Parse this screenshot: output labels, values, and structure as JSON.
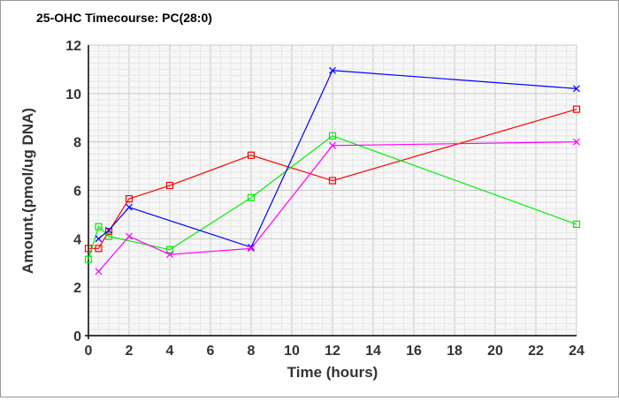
{
  "chart_data": {
    "type": "line",
    "title": "25-OHC Timecourse: PC(28:0)",
    "xlabel": "Time (hours)",
    "ylabel": "Amount.(pmol/ug DNA)",
    "xlim": [
      0,
      24
    ],
    "ylim": [
      0,
      12
    ],
    "xticks": [
      0,
      2,
      4,
      6,
      8,
      10,
      12,
      14,
      16,
      18,
      20,
      22,
      24
    ],
    "yticks": [
      0,
      2,
      4,
      6,
      8,
      10,
      12
    ],
    "grid": true,
    "series": [
      {
        "name": "red",
        "color": "#ff0000",
        "marker": "square",
        "x": [
          0,
          0.5,
          1,
          2,
          4,
          8,
          12,
          24
        ],
        "y": [
          3.6,
          3.6,
          4.3,
          5.65,
          6.2,
          7.45,
          6.4,
          9.35
        ]
      },
      {
        "name": "green",
        "color": "#00ee00",
        "marker": "square",
        "x": [
          0,
          0.5,
          1,
          4,
          8,
          12,
          24
        ],
        "y": [
          3.15,
          4.5,
          4.1,
          3.55,
          5.7,
          8.25,
          4.6
        ]
      },
      {
        "name": "blue",
        "color": "#0000ff",
        "marker": "x",
        "x": [
          0.5,
          1,
          2,
          8,
          12,
          24
        ],
        "y": [
          4.0,
          4.35,
          5.3,
          3.65,
          10.95,
          10.2
        ]
      },
      {
        "name": "magenta",
        "color": "#ff00ff",
        "marker": "x",
        "x": [
          0.5,
          2,
          4,
          8,
          12,
          24
        ],
        "y": [
          2.65,
          4.1,
          3.35,
          3.6,
          7.85,
          8.0
        ]
      }
    ]
  }
}
